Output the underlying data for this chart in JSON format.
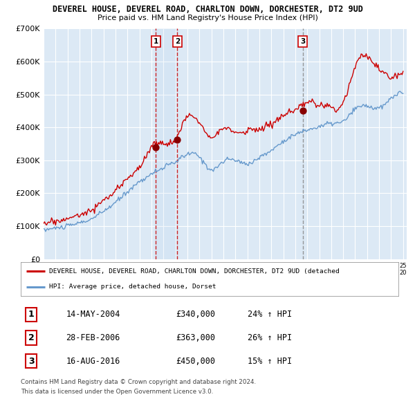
{
  "title": "DEVEREL HOUSE, DEVEREL ROAD, CHARLTON DOWN, DORCHESTER, DT2 9UD",
  "subtitle": "Price paid vs. HM Land Registry's House Price Index (HPI)",
  "legend_red": "DEVEREL HOUSE, DEVEREL ROAD, CHARLTON DOWN, DORCHESTER, DT2 9UD (detached",
  "legend_blue": "HPI: Average price, detached house, Dorset",
  "footer1": "Contains HM Land Registry data © Crown copyright and database right 2024.",
  "footer2": "This data is licensed under the Open Government Licence v3.0.",
  "bg_color": "#dce9f5",
  "red_color": "#cc0000",
  "blue_color": "#6699cc",
  "vline_red_color": "#cc0000",
  "vline_gray_color": "#888888",
  "ylim": [
    0,
    700000
  ],
  "yticks": [
    0,
    100000,
    200000,
    300000,
    400000,
    500000,
    600000,
    700000
  ],
  "ytick_labels": [
    "£0",
    "£100K",
    "£200K",
    "£300K",
    "£400K",
    "£500K",
    "£600K",
    "£700K"
  ],
  "sale_decimal": [
    2004.37,
    2006.16,
    2016.62
  ],
  "sale_prices": [
    340000,
    363000,
    450000
  ],
  "sale_labels": [
    "1",
    "2",
    "3"
  ],
  "hpi_years": [
    1995,
    1996,
    1997,
    1998,
    1999,
    2000,
    2001,
    2002,
    2003,
    2004,
    2005,
    2006,
    2007,
    2008,
    2009,
    2010,
    2011,
    2012,
    2013,
    2014,
    2015,
    2016,
    2017,
    2018,
    2019,
    2020,
    2021,
    2022,
    2023,
    2024,
    2025
  ],
  "hpi_values": [
    88000,
    94000,
    100000,
    110000,
    122000,
    145000,
    172000,
    205000,
    235000,
    258000,
    278000,
    295000,
    318000,
    310000,
    272000,
    296000,
    300000,
    290000,
    308000,
    330000,
    358000,
    378000,
    392000,
    402000,
    412000,
    418000,
    455000,
    465000,
    458000,
    488000,
    502000
  ],
  "price_years": [
    1995,
    1996,
    1997,
    1998,
    1999,
    2000,
    2001,
    2002,
    2003,
    2004,
    2005,
    2006,
    2007,
    2008,
    2009,
    2010,
    2011,
    2012,
    2013,
    2014,
    2015,
    2016,
    2017,
    2018,
    2019,
    2020,
    2021,
    2022,
    2023,
    2024,
    2025
  ],
  "price_values": [
    108000,
    115000,
    122000,
    135000,
    150000,
    178000,
    205000,
    248000,
    278000,
    340000,
    352000,
    363000,
    432000,
    415000,
    375000,
    395000,
    385000,
    390000,
    395000,
    410000,
    435000,
    450000,
    475000,
    468000,
    460000,
    475000,
    588000,
    615000,
    575000,
    555000,
    570000
  ],
  "sale_table": [
    [
      "1",
      "14-MAY-2004",
      "£340,000",
      "24% ↑ HPI"
    ],
    [
      "2",
      "28-FEB-2006",
      "£363,000",
      "26% ↑ HPI"
    ],
    [
      "3",
      "16-AUG-2016",
      "£450,000",
      "15% ↑ HPI"
    ]
  ]
}
